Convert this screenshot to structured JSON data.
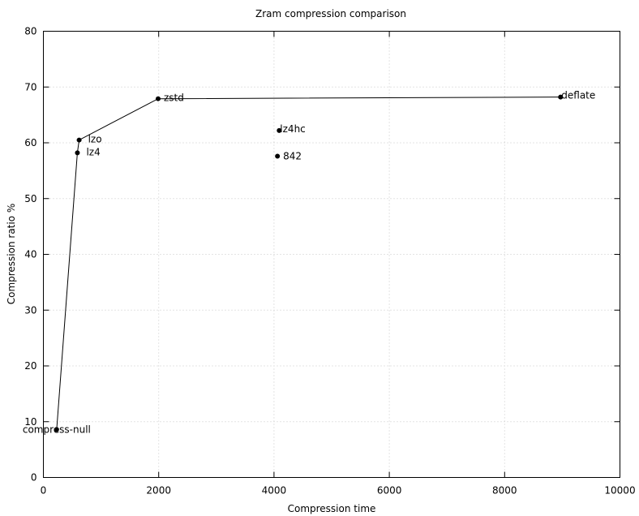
{
  "chart_data": {
    "type": "scatter",
    "title": "Zram compression comparison",
    "xlabel": "Compression time",
    "ylabel": "Compression ratio %",
    "xlim": [
      0,
      10000
    ],
    "ylim": [
      0,
      80
    ],
    "xticks": [
      0,
      2000,
      4000,
      6000,
      8000,
      10000
    ],
    "yticks": [
      0,
      10,
      20,
      30,
      40,
      50,
      60,
      70,
      80
    ],
    "grid": true,
    "line_color": "#000000",
    "point_color": "#000000",
    "grid_color": "#c8c8c8",
    "points": [
      {
        "label": "compress-null",
        "x": 230,
        "y": 8.6
      },
      {
        "label": "lz4",
        "x": 590,
        "y": 58.2
      },
      {
        "label": "lzo",
        "x": 620,
        "y": 60.5
      },
      {
        "label": "zstd",
        "x": 1990,
        "y": 67.9
      },
      {
        "label": "deflate",
        "x": 8970,
        "y": 68.2
      },
      {
        "label": "lz4hc",
        "x": 4090,
        "y": 62.2
      },
      {
        "label": "842",
        "x": 4060,
        "y": 57.6
      }
    ],
    "connected_series": [
      "compress-null",
      "lz4",
      "lzo",
      "zstd",
      "deflate"
    ]
  }
}
